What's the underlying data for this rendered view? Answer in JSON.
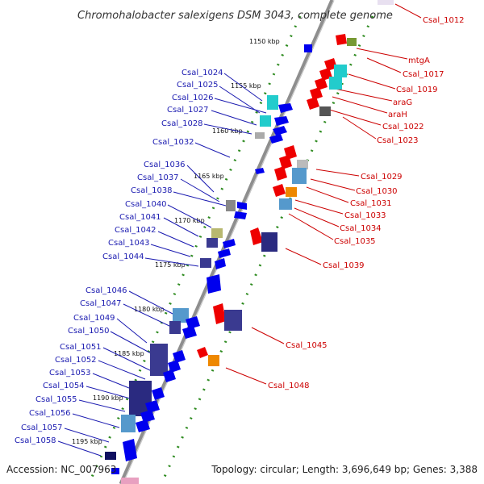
{
  "title": "Chromohalobacter salexigens DSM 3043, complete genome",
  "accession": "Accession: NC_007963",
  "topology": "Topology: circular; Length: 3,696,649 bp; Genes: 3,388",
  "ticks": [
    "1150 kbp",
    "1155 kbp",
    "1160 kbp",
    "1165 kbp",
    "1170 kbp",
    "1175 kbp",
    "1180 kbp",
    "1185 kbp",
    "1190 kbp",
    "1195 kbp"
  ],
  "genes_left": [
    "Csal_1024",
    "Csal_1025",
    "Csal_1026",
    "Csal_1027",
    "Csal_1028",
    "Csal_1032",
    "Csal_1036",
    "Csal_1037",
    "Csal_1038",
    "Csal_1040",
    "Csal_1041",
    "Csal_1042",
    "Csal_1043",
    "Csal_1044",
    "Csal_1046",
    "Csal_1047",
    "Csal_1049",
    "Csal_1050",
    "Csal_1051",
    "Csal_1052",
    "Csal_1053",
    "Csal_1054",
    "Csal_1055",
    "Csal_1056",
    "Csal_1057",
    "Csal_1058"
  ],
  "genes_right": [
    "Csal_1012",
    "mtgA",
    "Csal_1017",
    "Csal_1019",
    "araG",
    "araH",
    "Csal_1022",
    "Csal_1023",
    "Csal_1029",
    "Csal_1030",
    "Csal_1031",
    "Csal_1033",
    "Csal_1034",
    "Csal_1035",
    "Csal_1039",
    "Csal_1045",
    "Csal_1048"
  ],
  "colors": {
    "backbone": "#8a8a8a",
    "forward_strand": "#0000ee",
    "reverse_strand": "#ee0000",
    "tick_dots": "#2e8b20",
    "label_left": "#1a1ab0",
    "label_right": "#cc0000"
  }
}
